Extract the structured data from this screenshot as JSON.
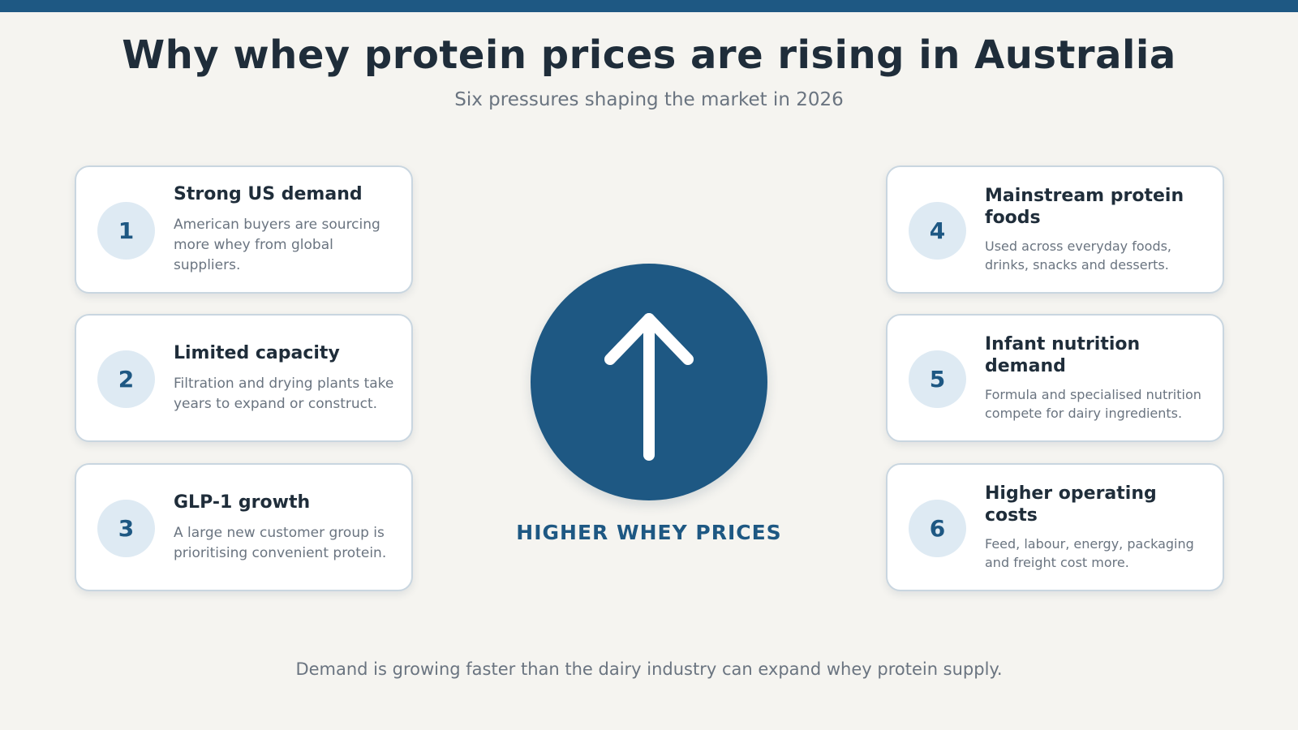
{
  "title": "Why whey protein prices are rising in Australia",
  "subtitle": "Six pressures shaping the market in 2026",
  "center": {
    "label": "HIGHER WHEY PRICES",
    "icon": "arrow-up-icon"
  },
  "left_factors": [
    {
      "number": "1",
      "title": "Strong US demand",
      "description": "American buyers are sourcing more whey from global suppliers."
    },
    {
      "number": "2",
      "title": "Limited capacity",
      "description": "Filtration and drying plants take years to expand or construct."
    },
    {
      "number": "3",
      "title": "GLP-1 growth",
      "description": "A large new customer group is prioritising convenient protein."
    }
  ],
  "right_factors": [
    {
      "number": "4",
      "title": "Mainstream protein foods",
      "description": "Used across everyday foods, drinks, snacks and desserts."
    },
    {
      "number": "5",
      "title": "Infant nutrition demand",
      "description": "Formula and specialised nutrition compete for dairy ingredients."
    },
    {
      "number": "6",
      "title": "Higher operating costs",
      "description": "Feed, labour, energy, packaging and freight cost more."
    }
  ],
  "footer": "Demand is growing faster than the dairy industry can expand whey protein supply.",
  "colors": {
    "accent": "#1e5883",
    "background": "#f5f4f0",
    "badge": "#deeaf3",
    "text_dark": "#1f2d3a",
    "text_muted": "#6a7480"
  }
}
